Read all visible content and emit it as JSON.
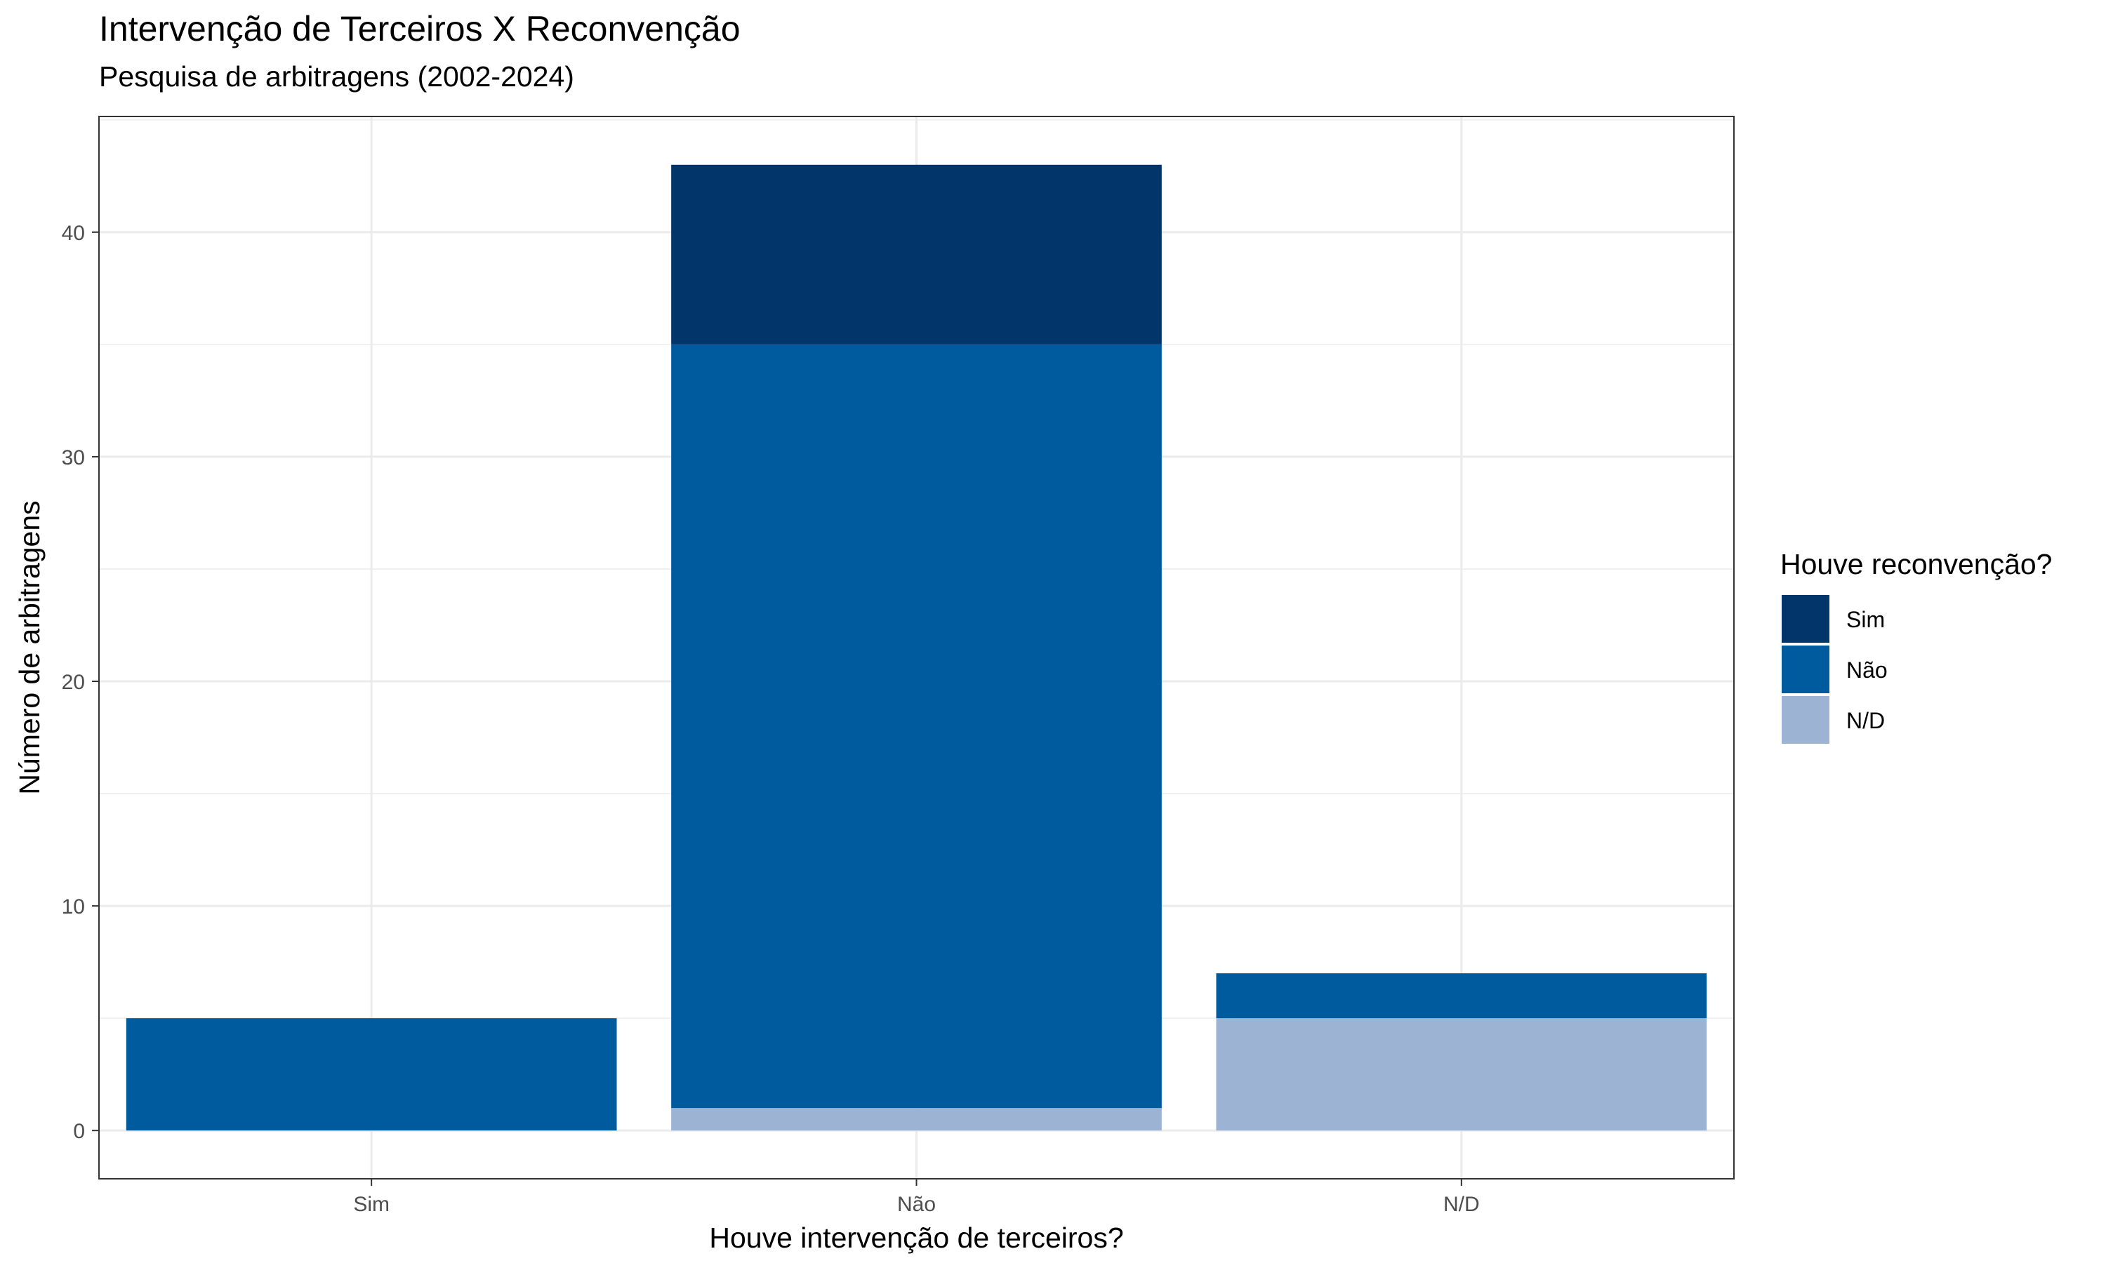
{
  "chart_data": {
    "type": "bar",
    "stacked": true,
    "title": "Intervenção de Terceiros X Reconvenção",
    "subtitle": "Pesquisa de arbitragens (2002-2024)",
    "xlabel": "Houve intervenção de terceiros?",
    "ylabel": "Número de arbitragens",
    "categories": [
      "Sim",
      "Não",
      "N/D"
    ],
    "series": [
      {
        "name": "N/D",
        "color": "#9db3d4",
        "values": [
          0,
          1,
          5
        ]
      },
      {
        "name": "Não",
        "color": "#005a9e",
        "values": [
          5,
          34,
          2
        ]
      },
      {
        "name": "Sim",
        "color": "#02366b",
        "values": [
          0,
          8,
          0
        ]
      }
    ],
    "yticks": [
      0,
      10,
      20,
      30,
      40
    ],
    "ylim": [
      -2.15,
      45.15
    ],
    "grid": true,
    "legend": {
      "title": "Houve reconvenção?",
      "position": "right",
      "order": [
        "Sim",
        "Não",
        "N/D"
      ]
    }
  }
}
